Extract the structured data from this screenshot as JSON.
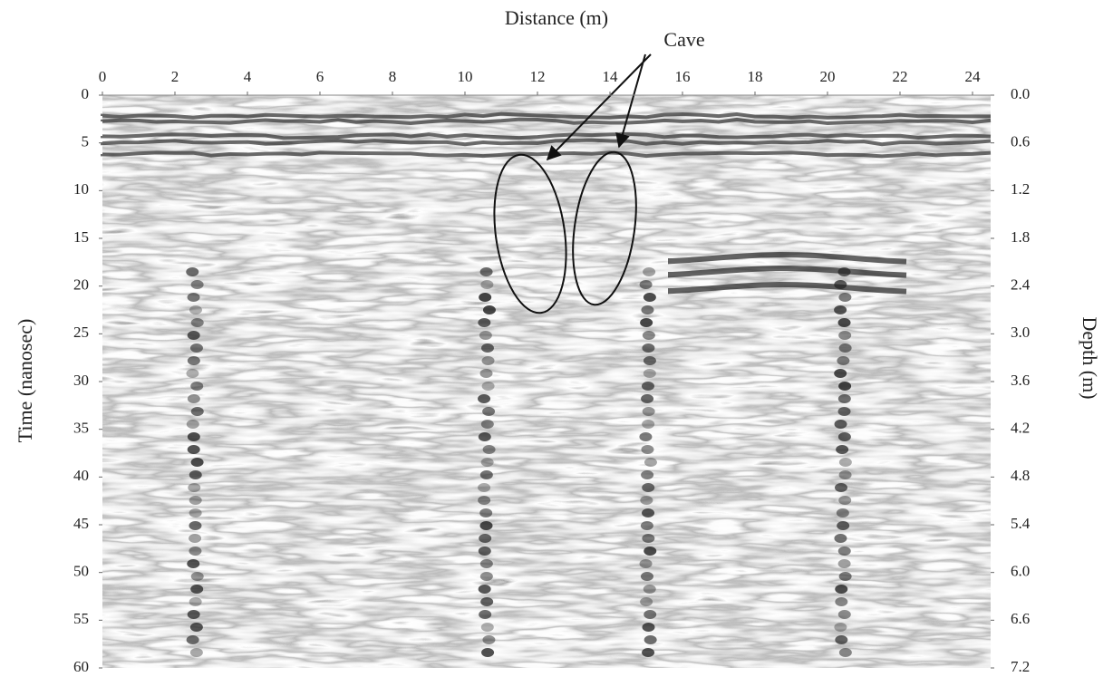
{
  "chart_data": {
    "type": "radargram",
    "x_label": "Distance (m)",
    "y_label": "Time (nanosec)",
    "y2_label": "Depth (m)",
    "annotation": "Cave",
    "xlim": [
      0,
      24.5
    ],
    "xticks": [
      0,
      2,
      4,
      6,
      8,
      10,
      12,
      14,
      16,
      18,
      20,
      22,
      24
    ],
    "ylim": [
      0,
      60
    ],
    "yticks": [
      0,
      5,
      10,
      15,
      20,
      25,
      30,
      35,
      40,
      45,
      50,
      55,
      60
    ],
    "y2lim": [
      0,
      7.2
    ],
    "y2ticks": [
      {
        "value": 0,
        "label": "0.0"
      },
      0.6,
      1.2,
      1.8,
      2.4,
      {
        "value": 3,
        "label": "3.0"
      },
      3.6,
      4.2,
      4.8,
      5.4,
      {
        "value": 6,
        "label": "6.0"
      },
      6.6,
      7.2
    ],
    "color": "#3a3a3a"
  }
}
